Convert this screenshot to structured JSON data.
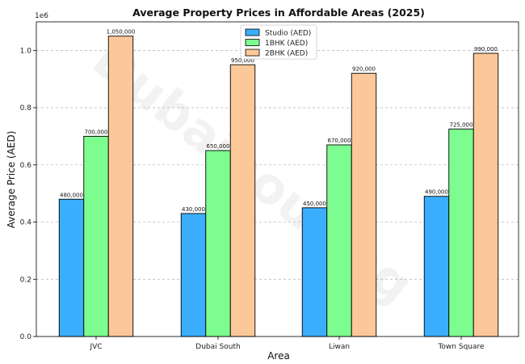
{
  "chart_data": {
    "type": "bar",
    "title": "Average Property Prices in Affordable Areas (2025)",
    "xlabel": "Area",
    "ylabel": "Average Price (AED)",
    "y_scale_label": "1e6",
    "ylim": [
      0,
      1100000
    ],
    "yticks": [
      0,
      200000,
      400000,
      600000,
      800000,
      1000000
    ],
    "ytick_labels": [
      "0.0",
      "0.2",
      "0.4",
      "0.6",
      "0.8",
      "1.0"
    ],
    "grid": "y-dashed",
    "legend_position": "top-center",
    "watermark": "Dubaihousing",
    "categories": [
      "JVC",
      "Dubai South",
      "Liwan",
      "Town Square"
    ],
    "series": [
      {
        "name": "Studio (AED)",
        "color": "#3aaefc",
        "values": [
          480000,
          430000,
          450000,
          490000
        ],
        "labels": [
          "480,000",
          "430,000",
          "450,000",
          "490,000"
        ]
      },
      {
        "name": "1BHK (AED)",
        "color": "#7dfd8f",
        "values": [
          700000,
          650000,
          670000,
          725000
        ],
        "labels": [
          "700,000",
          "650,000",
          "670,000",
          "725,000"
        ]
      },
      {
        "name": "2BHK (AED)",
        "color": "#fdc899",
        "values": [
          1050000,
          950000,
          920000,
          990000
        ],
        "labels": [
          "1,050,000",
          "950,000",
          "920,000",
          "990,000"
        ]
      }
    ]
  }
}
